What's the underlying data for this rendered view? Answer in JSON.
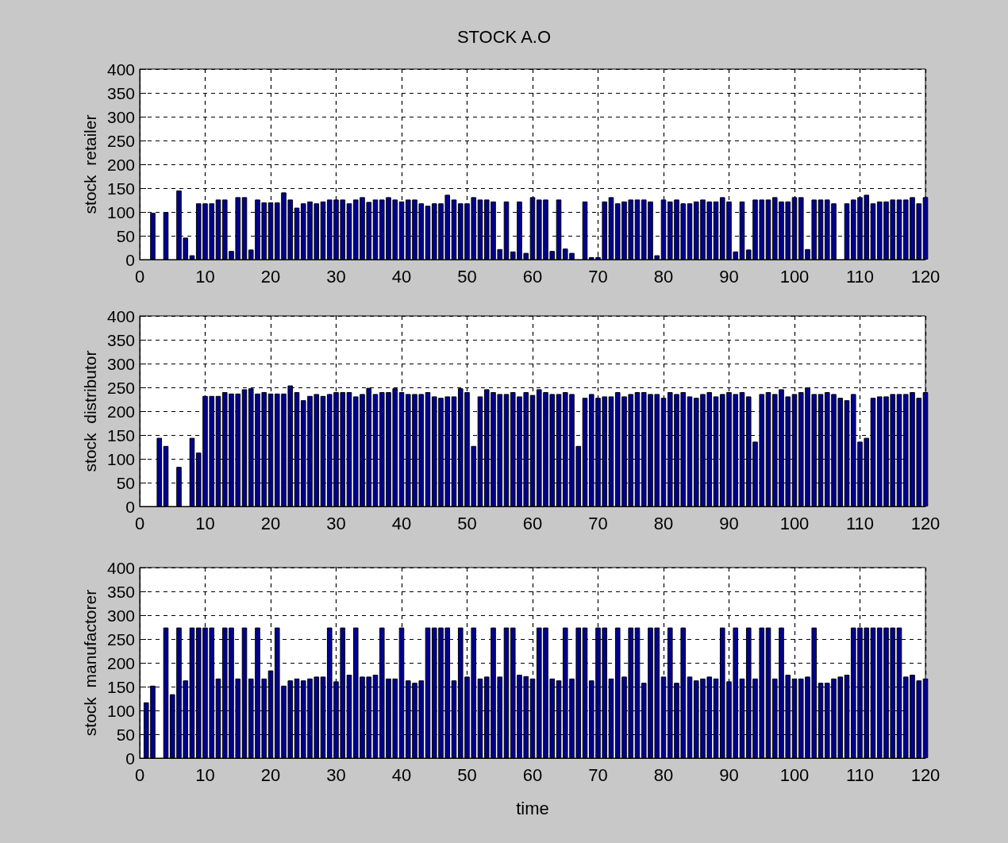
{
  "chart_data": [
    {
      "type": "bar",
      "title": "STOCK A.O",
      "ylabel": "stock  retailer",
      "color": "#00008f",
      "xlim": [
        0,
        120
      ],
      "xticks": [
        0,
        10,
        20,
        30,
        40,
        50,
        60,
        70,
        80,
        90,
        100,
        110,
        120
      ],
      "ylim": [
        0,
        400
      ],
      "yticks": [
        0,
        50,
        100,
        150,
        200,
        250,
        300,
        350,
        400
      ],
      "grid": true,
      "x": [
        1,
        2,
        3,
        4,
        5,
        6,
        7,
        8,
        9,
        10,
        11,
        12,
        13,
        14,
        15,
        16,
        17,
        18,
        19,
        20,
        21,
        22,
        23,
        24,
        25,
        26,
        27,
        28,
        29,
        30,
        31,
        32,
        33,
        34,
        35,
        36,
        37,
        38,
        39,
        40,
        41,
        42,
        43,
        44,
        45,
        46,
        47,
        48,
        49,
        50,
        51,
        52,
        53,
        54,
        55,
        56,
        57,
        58,
        59,
        60,
        61,
        62,
        63,
        64,
        65,
        66,
        67,
        68,
        69,
        70,
        71,
        72,
        73,
        74,
        75,
        76,
        77,
        78,
        79,
        80,
        81,
        82,
        83,
        84,
        85,
        86,
        87,
        88,
        89,
        90,
        91,
        92,
        93,
        94,
        95,
        96,
        97,
        98,
        99,
        100,
        101,
        102,
        103,
        104,
        105,
        106,
        107,
        108,
        109,
        110,
        111,
        112,
        113,
        114,
        115,
        116,
        117,
        118,
        119,
        120
      ],
      "values": [
        0,
        98,
        0,
        100,
        0,
        145,
        46,
        9,
        118,
        118,
        118,
        126,
        126,
        18,
        131,
        131,
        21,
        126,
        120,
        120,
        120,
        141,
        126,
        109,
        118,
        122,
        118,
        122,
        126,
        126,
        126,
        118,
        126,
        131,
        121,
        126,
        126,
        131,
        126,
        122,
        126,
        126,
        118,
        113,
        118,
        118,
        136,
        126,
        118,
        118,
        131,
        126,
        126,
        122,
        22,
        122,
        17,
        122,
        14,
        131,
        126,
        126,
        18,
        126,
        23,
        14,
        0,
        122,
        5,
        5,
        122,
        131,
        118,
        122,
        126,
        126,
        126,
        122,
        9,
        126,
        122,
        126,
        118,
        118,
        122,
        126,
        122,
        122,
        131,
        122,
        17,
        122,
        21,
        126,
        126,
        126,
        131,
        122,
        122,
        131,
        131,
        22,
        126,
        126,
        126,
        118,
        0,
        118,
        126,
        131,
        136,
        118,
        122,
        122,
        126,
        126,
        126,
        131,
        118,
        131
      ]
    },
    {
      "type": "bar",
      "ylabel": "stock  distributor",
      "color": "#00008f",
      "xlim": [
        0,
        120
      ],
      "xticks": [
        0,
        10,
        20,
        30,
        40,
        50,
        60,
        70,
        80,
        90,
        100,
        110,
        120
      ],
      "ylim": [
        0,
        400
      ],
      "yticks": [
        0,
        50,
        100,
        150,
        200,
        250,
        300,
        350,
        400
      ],
      "grid": true,
      "x": [
        1,
        2,
        3,
        4,
        5,
        6,
        7,
        8,
        9,
        10,
        11,
        12,
        13,
        14,
        15,
        16,
        17,
        18,
        19,
        20,
        21,
        22,
        23,
        24,
        25,
        26,
        27,
        28,
        29,
        30,
        31,
        32,
        33,
        34,
        35,
        36,
        37,
        38,
        39,
        40,
        41,
        42,
        43,
        44,
        45,
        46,
        47,
        48,
        49,
        50,
        51,
        52,
        53,
        54,
        55,
        56,
        57,
        58,
        59,
        60,
        61,
        62,
        63,
        64,
        65,
        66,
        67,
        68,
        69,
        70,
        71,
        72,
        73,
        74,
        75,
        76,
        77,
        78,
        79,
        80,
        81,
        82,
        83,
        84,
        85,
        86,
        87,
        88,
        89,
        90,
        91,
        92,
        93,
        94,
        95,
        96,
        97,
        98,
        99,
        100,
        101,
        102,
        103,
        104,
        105,
        106,
        107,
        108,
        109,
        110,
        111,
        112,
        113,
        114,
        115,
        116,
        117,
        118,
        119,
        120
      ],
      "values": [
        0,
        0,
        144,
        127,
        0,
        83,
        0,
        144,
        113,
        232,
        232,
        232,
        240,
        237,
        237,
        246,
        248,
        237,
        240,
        237,
        237,
        237,
        254,
        240,
        223,
        232,
        236,
        232,
        236,
        240,
        240,
        240,
        231,
        236,
        249,
        236,
        240,
        240,
        248,
        240,
        236,
        236,
        236,
        240,
        231,
        228,
        231,
        231,
        248,
        240,
        127,
        231,
        246,
        240,
        236,
        236,
        240,
        231,
        240,
        234,
        246,
        240,
        236,
        236,
        240,
        236,
        127,
        228,
        236,
        228,
        231,
        231,
        240,
        231,
        236,
        240,
        240,
        236,
        236,
        228,
        240,
        236,
        240,
        231,
        228,
        236,
        240,
        231,
        236,
        240,
        236,
        240,
        231,
        136,
        236,
        240,
        236,
        246,
        231,
        236,
        240,
        250,
        236,
        236,
        240,
        236,
        228,
        223,
        236,
        136,
        144,
        228,
        231,
        231,
        236,
        236,
        236,
        240,
        228,
        240
      ]
    },
    {
      "type": "bar",
      "ylabel": "stock  manufactorer",
      "xlabel": "time",
      "color": "#00008f",
      "xlim": [
        0,
        120
      ],
      "xticks": [
        0,
        10,
        20,
        30,
        40,
        50,
        60,
        70,
        80,
        90,
        100,
        110,
        120
      ],
      "ylim": [
        0,
        400
      ],
      "yticks": [
        0,
        50,
        100,
        150,
        200,
        250,
        300,
        350,
        400
      ],
      "grid": true,
      "x": [
        1,
        2,
        3,
        4,
        5,
        6,
        7,
        8,
        9,
        10,
        11,
        12,
        13,
        14,
        15,
        16,
        17,
        18,
        19,
        20,
        21,
        22,
        23,
        24,
        25,
        26,
        27,
        28,
        29,
        30,
        31,
        32,
        33,
        34,
        35,
        36,
        37,
        38,
        39,
        40,
        41,
        42,
        43,
        44,
        45,
        46,
        47,
        48,
        49,
        50,
        51,
        52,
        53,
        54,
        55,
        56,
        57,
        58,
        59,
        60,
        61,
        62,
        63,
        64,
        65,
        66,
        67,
        68,
        69,
        70,
        71,
        72,
        73,
        74,
        75,
        76,
        77,
        78,
        79,
        80,
        81,
        82,
        83,
        84,
        85,
        86,
        87,
        88,
        89,
        90,
        91,
        92,
        93,
        94,
        95,
        96,
        97,
        98,
        99,
        100,
        101,
        102,
        103,
        104,
        105,
        106,
        107,
        108,
        109,
        110,
        111,
        112,
        113,
        114,
        115,
        116,
        117,
        118,
        119,
        120
      ],
      "values": [
        117,
        152,
        0,
        274,
        134,
        274,
        163,
        274,
        274,
        274,
        274,
        167,
        274,
        274,
        167,
        274,
        167,
        274,
        167,
        184,
        274,
        152,
        163,
        167,
        163,
        167,
        171,
        171,
        274,
        161,
        274,
        175,
        274,
        171,
        171,
        175,
        274,
        167,
        167,
        274,
        163,
        158,
        163,
        274,
        274,
        274,
        274,
        163,
        274,
        171,
        274,
        167,
        171,
        274,
        171,
        274,
        274,
        175,
        172,
        167,
        274,
        274,
        167,
        163,
        274,
        167,
        274,
        274,
        163,
        274,
        274,
        167,
        274,
        171,
        274,
        274,
        158,
        274,
        274,
        171,
        274,
        158,
        274,
        171,
        163,
        167,
        171,
        167,
        274,
        161,
        274,
        167,
        274,
        167,
        274,
        274,
        167,
        274,
        175,
        167,
        167,
        171,
        274,
        158,
        158,
        167,
        171,
        175,
        274,
        274,
        274,
        274,
        274,
        274,
        274,
        274,
        171,
        175,
        163,
        167
      ]
    }
  ]
}
